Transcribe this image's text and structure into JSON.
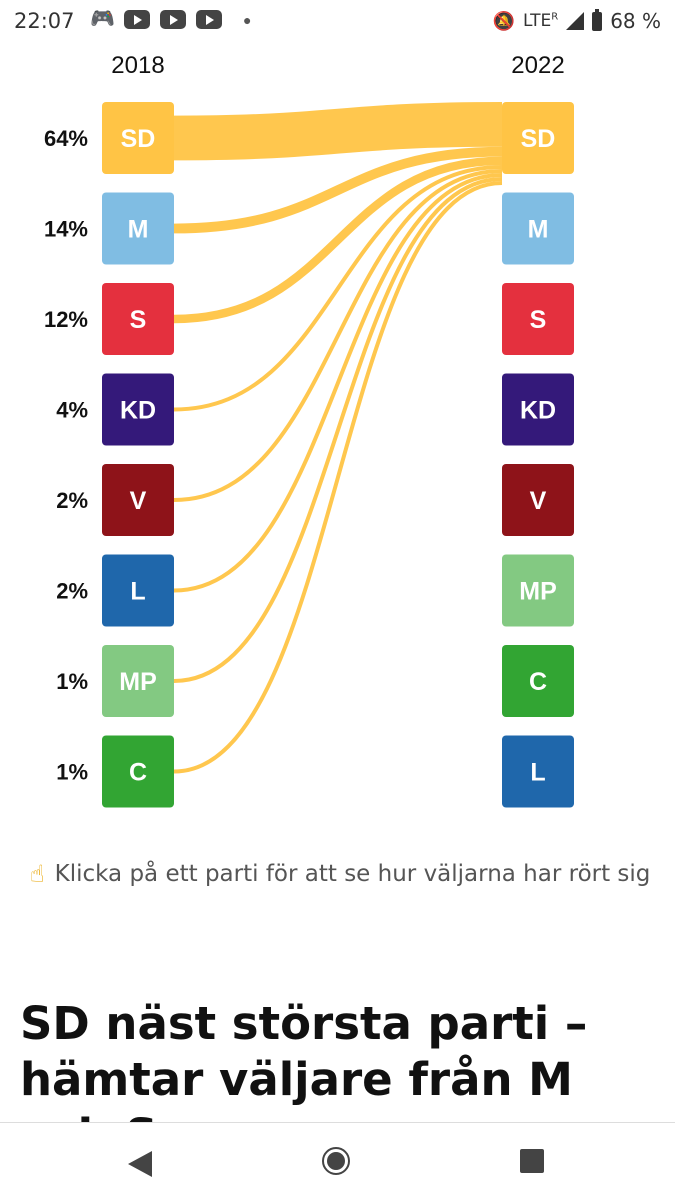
{
  "status_bar": {
    "time": "22:07",
    "network": "LTE",
    "roaming": "R",
    "battery": "68 %",
    "icons": [
      "discord-icon",
      "youtube-icon",
      "youtube-icon",
      "youtube-icon",
      "dot-icon",
      "bell-off-icon",
      "signal-icon",
      "battery-icon"
    ]
  },
  "chart_data": {
    "type": "sankey",
    "left_year": "2018",
    "right_year": "2022",
    "target": "SD",
    "left": [
      {
        "party": "SD",
        "percent": 64,
        "percent_label": "64%",
        "color": "#FFC445"
      },
      {
        "party": "M",
        "percent": 14,
        "percent_label": "14%",
        "color": "#80BDE3"
      },
      {
        "party": "S",
        "percent": 12,
        "percent_label": "12%",
        "color": "#E4303E"
      },
      {
        "party": "KD",
        "percent": 4,
        "percent_label": "4%",
        "color": "#34197A"
      },
      {
        "party": "V",
        "percent": 2,
        "percent_label": "2%",
        "color": "#8E1319"
      },
      {
        "party": "L",
        "percent": 2,
        "percent_label": "2%",
        "color": "#1F67AB"
      },
      {
        "party": "MP",
        "percent": 1,
        "percent_label": "1%",
        "color": "#83C982"
      },
      {
        "party": "C",
        "percent": 1,
        "percent_label": "1%",
        "color": "#32A533"
      }
    ],
    "right": [
      {
        "party": "SD",
        "color": "#FFC445"
      },
      {
        "party": "M",
        "color": "#80BDE3"
      },
      {
        "party": "S",
        "color": "#E4303E"
      },
      {
        "party": "KD",
        "color": "#34197A"
      },
      {
        "party": "V",
        "color": "#8E1319"
      },
      {
        "party": "MP",
        "color": "#83C982"
      },
      {
        "party": "C",
        "color": "#32A533"
      },
      {
        "party": "L",
        "color": "#1F67AB"
      }
    ],
    "flow_color": "#FFC445"
  },
  "hint": {
    "icon": "pointing-finger-icon",
    "text": "Klicka på ett parti för att se hur väljarna har rört sig"
  },
  "headline": "SD näst största parti – hämtar väljare från M och S",
  "nav": {
    "icons": [
      "back-icon",
      "home-icon",
      "recents-icon"
    ]
  }
}
